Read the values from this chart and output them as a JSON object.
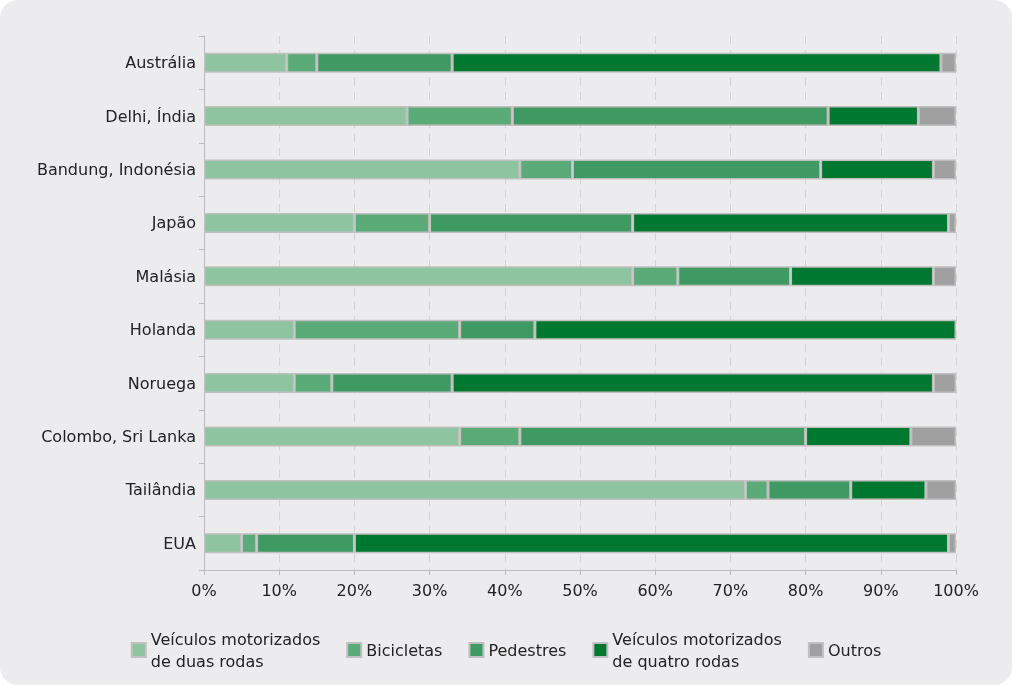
{
  "chart_data": {
    "type": "bar",
    "orientation": "horizontal",
    "stacked": true,
    "categories": [
      "Austrália",
      "Delhi, Índia",
      "Bandung, Indonésia",
      "Japão",
      "Malásia",
      "Holanda",
      "Noruega",
      "Colombo, Sri Lanka",
      "Tailândia",
      "EUA"
    ],
    "series": [
      {
        "name": "Veículos motorizados\nde duas rodas",
        "color": "#8fc4a0",
        "values": [
          11,
          27,
          42,
          20,
          57,
          12,
          12,
          34,
          72,
          5
        ]
      },
      {
        "name": "Bicicletas",
        "color": "#5aab78",
        "values": [
          4,
          14,
          7,
          10,
          6,
          22,
          5,
          8,
          3,
          2
        ]
      },
      {
        "name": "Pedestres",
        "color": "#3e9a62",
        "values": [
          18,
          42,
          33,
          27,
          15,
          10,
          16,
          38,
          11,
          13
        ]
      },
      {
        "name": "Veículos motorizados\nde quatro rodas",
        "color": "#00782f",
        "values": [
          65,
          12,
          15,
          42,
          19,
          56,
          64,
          14,
          10,
          79
        ]
      },
      {
        "name": "Outros",
        "color": "#a0a0a0",
        "values": [
          2,
          5,
          3,
          1,
          3,
          null,
          3,
          6,
          4,
          1
        ]
      }
    ],
    "xlim": [
      0,
      100
    ],
    "xticks": [
      {
        "value": 0,
        "label": "0%"
      },
      {
        "value": 10,
        "label": "10%"
      },
      {
        "value": 20,
        "label": "20%"
      },
      {
        "value": 30,
        "label": "30%"
      },
      {
        "value": 40,
        "label": "40%"
      },
      {
        "value": 50,
        "label": "50%"
      },
      {
        "value": 60,
        "label": "60%"
      },
      {
        "value": 70,
        "label": "70%"
      },
      {
        "value": 80,
        "label": "80%"
      },
      {
        "value": 90,
        "label": "90%"
      },
      {
        "value": 100,
        "label": "100%"
      }
    ],
    "grid": "x",
    "legend": "bottom"
  }
}
